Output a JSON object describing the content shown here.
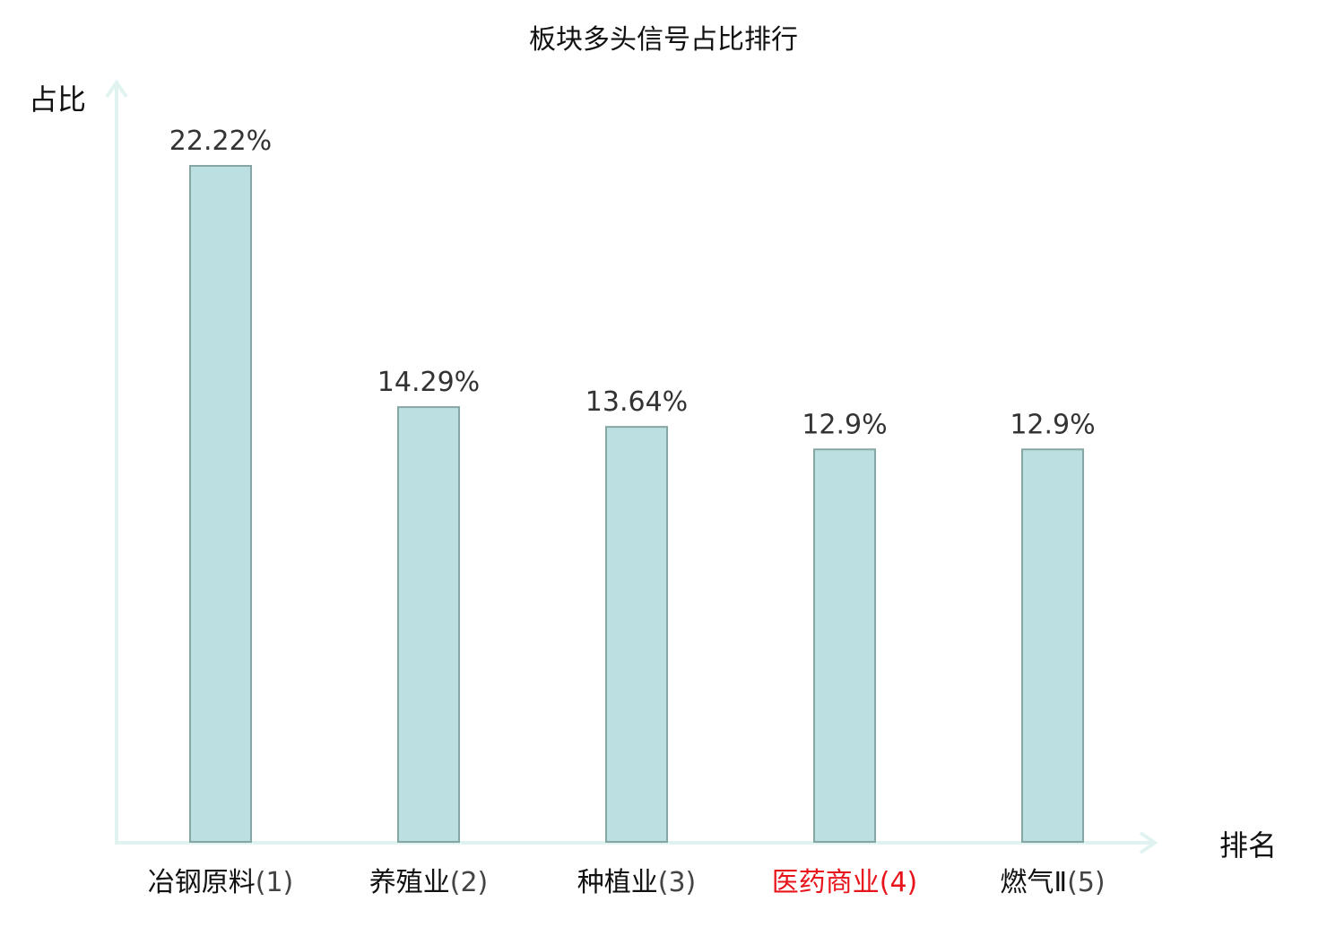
{
  "chart_data": {
    "type": "bar",
    "title": "板块多头信号占比排行",
    "xlabel": "排名",
    "ylabel": "占比",
    "categories": [
      "冶钢原料",
      "养殖业",
      "种植业",
      "医药商业",
      "燃气Ⅱ"
    ],
    "ranks": [
      "(1)",
      "(2)",
      "(3)",
      "(4)",
      "(5)"
    ],
    "highlight_index": 3,
    "values": [
      22.22,
      14.29,
      13.64,
      12.9,
      12.9
    ],
    "value_labels": [
      "22.22%",
      "14.29%",
      "13.64%",
      "12.9%",
      "12.9%"
    ],
    "ylim": [
      0,
      25
    ],
    "grid": false,
    "legend": "none"
  },
  "colors": {
    "bar_fill": "#bce0e1",
    "bar_stroke": "#86a6a6",
    "axis": "#e0f3f1",
    "text": "#333333",
    "label": "#111111",
    "highlight": "#e8141b"
  }
}
